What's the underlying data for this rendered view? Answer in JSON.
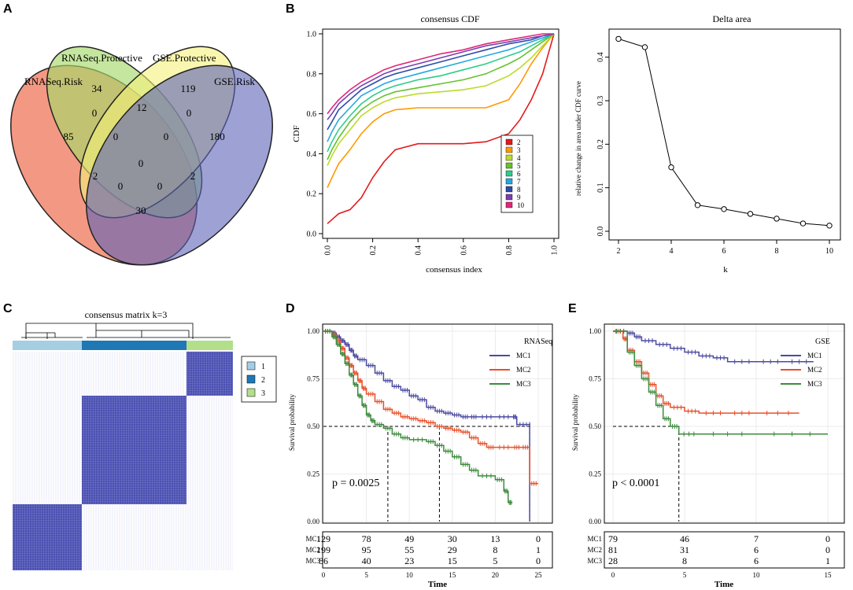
{
  "panel_labels": [
    "A",
    "B",
    "C",
    "D",
    "E"
  ],
  "chart_data": [
    {
      "panel": "A",
      "type": "venn",
      "sets": [
        "RNASeq.Risk",
        "RNASeq.Protective",
        "GSE.Protective",
        "GSE.Risk"
      ],
      "set_colors": [
        "#ee6c4d",
        "#a6d96a",
        "#f5f07a",
        "#5b62b8"
      ],
      "regions": [
        {
          "sets": "RNASeq.Risk only",
          "value": 85
        },
        {
          "sets": "RNASeq.Protective only",
          "value": 34
        },
        {
          "sets": "GSE.Protective only",
          "value": 119
        },
        {
          "sets": "GSE.Risk only",
          "value": 180
        },
        {
          "sets": "RNASeq.Risk & RNASeq.Protective",
          "value": 0
        },
        {
          "sets": "RNASeq.Protective & GSE.Protective",
          "value": 12
        },
        {
          "sets": "GSE.Protective & GSE.Risk",
          "value": 0
        },
        {
          "sets": "RNASeq.Risk & RNASeq.Protective & GSE.Protective",
          "value": 0
        },
        {
          "sets": "RNASeq.Protective & GSE.Protective & GSE.Risk",
          "value": 0
        },
        {
          "sets": "all four",
          "value": 0
        },
        {
          "sets": "RNASeq.Risk & GSE.Protective",
          "value": 2
        },
        {
          "sets": "RNASeq.Protective & GSE.Risk",
          "value": 2
        },
        {
          "sets": "RNASeq.Risk & GSE.Protective & GSE.Risk",
          "value": 0
        },
        {
          "sets": "RNASeq.Risk & RNASeq.Protective & GSE.Risk",
          "value": 0
        },
        {
          "sets": "RNASeq.Risk & GSE.Risk",
          "value": 30
        }
      ]
    },
    {
      "panel": "B-left",
      "type": "line",
      "title": "consensus CDF",
      "xlabel": "consensus index",
      "ylabel": "CDF",
      "xlim": [
        0,
        1
      ],
      "ylim": [
        0,
        1
      ],
      "xticks": [
        "0.0",
        "0.2",
        "0.4",
        "0.6",
        "0.8",
        "1.0"
      ],
      "yticks": [
        "0.0",
        "0.2",
        "0.4",
        "0.6",
        "0.8",
        "1.0"
      ],
      "x": [
        0,
        0.02,
        0.05,
        0.1,
        0.15,
        0.2,
        0.25,
        0.3,
        0.4,
        0.5,
        0.6,
        0.7,
        0.8,
        0.85,
        0.9,
        0.95,
        1.0
      ],
      "series": [
        {
          "name": "2",
          "color": "#e31a1c",
          "values": [
            0.05,
            0.07,
            0.1,
            0.12,
            0.18,
            0.28,
            0.36,
            0.42,
            0.45,
            0.45,
            0.45,
            0.46,
            0.5,
            0.57,
            0.67,
            0.8,
            1.0
          ]
        },
        {
          "name": "3",
          "color": "#ff9900",
          "values": [
            0.23,
            0.28,
            0.35,
            0.42,
            0.5,
            0.56,
            0.6,
            0.62,
            0.63,
            0.63,
            0.63,
            0.63,
            0.67,
            0.75,
            0.85,
            0.93,
            1.0
          ]
        },
        {
          "name": "4",
          "color": "#bcdb2b",
          "values": [
            0.34,
            0.39,
            0.45,
            0.52,
            0.59,
            0.63,
            0.66,
            0.68,
            0.7,
            0.71,
            0.72,
            0.74,
            0.79,
            0.83,
            0.88,
            0.94,
            1.0
          ]
        },
        {
          "name": "5",
          "color": "#66c22d",
          "values": [
            0.37,
            0.42,
            0.48,
            0.56,
            0.62,
            0.66,
            0.69,
            0.71,
            0.73,
            0.75,
            0.77,
            0.8,
            0.85,
            0.88,
            0.92,
            0.96,
            1.0
          ]
        },
        {
          "name": "6",
          "color": "#2ecc8a",
          "values": [
            0.41,
            0.46,
            0.52,
            0.59,
            0.65,
            0.69,
            0.72,
            0.74,
            0.77,
            0.79,
            0.82,
            0.85,
            0.89,
            0.91,
            0.94,
            0.97,
            1.0
          ]
        },
        {
          "name": "7",
          "color": "#27a8e0",
          "values": [
            0.46,
            0.51,
            0.57,
            0.63,
            0.69,
            0.72,
            0.75,
            0.77,
            0.8,
            0.83,
            0.86,
            0.89,
            0.92,
            0.94,
            0.96,
            0.98,
            1.0
          ]
        },
        {
          "name": "8",
          "color": "#2c4ea8",
          "values": [
            0.52,
            0.56,
            0.62,
            0.67,
            0.72,
            0.75,
            0.78,
            0.8,
            0.83,
            0.86,
            0.89,
            0.92,
            0.95,
            0.96,
            0.97,
            0.99,
            1.0
          ]
        },
        {
          "name": "9",
          "color": "#7a3fb0",
          "values": [
            0.57,
            0.6,
            0.65,
            0.7,
            0.74,
            0.77,
            0.8,
            0.82,
            0.85,
            0.88,
            0.91,
            0.94,
            0.96,
            0.97,
            0.98,
            0.99,
            1.0
          ]
        },
        {
          "name": "10",
          "color": "#e0287a",
          "values": [
            0.6,
            0.63,
            0.67,
            0.72,
            0.76,
            0.79,
            0.82,
            0.84,
            0.87,
            0.9,
            0.92,
            0.95,
            0.97,
            0.98,
            0.99,
            1.0,
            1.0
          ]
        }
      ],
      "legend": [
        "2",
        "3",
        "4",
        "5",
        "6",
        "7",
        "8",
        "9",
        "10"
      ]
    },
    {
      "panel": "B-right",
      "type": "line",
      "title": "Delta area",
      "xlabel": "k",
      "ylabel": "relative change in area under CDF curve",
      "xlim": [
        2,
        10
      ],
      "ylim": [
        0,
        0.45
      ],
      "xticks": [
        "2",
        "4",
        "6",
        "8",
        "10"
      ],
      "yticks": [
        "0.0",
        "0.1",
        "0.2",
        "0.3",
        "0.4"
      ],
      "x": [
        2,
        3,
        4,
        5,
        6,
        7,
        8,
        9,
        10
      ],
      "values": [
        0.442,
        0.423,
        0.147,
        0.06,
        0.051,
        0.04,
        0.029,
        0.018,
        0.013
      ]
    },
    {
      "panel": "C",
      "type": "heatmap",
      "title": "consensus matrix k=3",
      "legend": [
        {
          "label": "1",
          "color": "#a6cee3"
        },
        {
          "label": "2",
          "color": "#1f78b4"
        },
        {
          "label": "3",
          "color": "#b2df8a"
        }
      ],
      "cluster_order": [
        "1",
        "2",
        "3"
      ]
    },
    {
      "panel": "D",
      "type": "line",
      "subtype": "kaplan-meier",
      "legend_title": "RNASeq",
      "xlabel": "Time",
      "ylabel": "Survival probability",
      "xlim": [
        0,
        25
      ],
      "ylim": [
        0,
        1
      ],
      "xticks": [
        "0",
        "5",
        "10",
        "15",
        "20",
        "25"
      ],
      "yticks": [
        "0.00",
        "0.25",
        "0.50",
        "0.75",
        "1.00"
      ],
      "pvalue": "p = 0.0025",
      "medians": [
        7.5,
        13.5,
        24
      ],
      "series": [
        {
          "name": "MC1",
          "color": "#4b4aa0",
          "points": [
            [
              0,
              1
            ],
            [
              1,
              0.99
            ],
            [
              1.5,
              0.97
            ],
            [
              2,
              0.95
            ],
            [
              2.5,
              0.93
            ],
            [
              3,
              0.9
            ],
            [
              3.5,
              0.87
            ],
            [
              4,
              0.85
            ],
            [
              5,
              0.82
            ],
            [
              6,
              0.78
            ],
            [
              7,
              0.74
            ],
            [
              8,
              0.71
            ],
            [
              9,
              0.69
            ],
            [
              10,
              0.66
            ],
            [
              11,
              0.64
            ],
            [
              12,
              0.6
            ],
            [
              13,
              0.58
            ],
            [
              14,
              0.57
            ],
            [
              15,
              0.56
            ],
            [
              16,
              0.55
            ],
            [
              17,
              0.55
            ],
            [
              18,
              0.55
            ],
            [
              20,
              0.55
            ],
            [
              22,
              0.55
            ],
            [
              22.5,
              0.51
            ],
            [
              24,
              0.51
            ],
            [
              24,
              0
            ]
          ]
        },
        {
          "name": "MC2",
          "color": "#e8502b",
          "points": [
            [
              0,
              1
            ],
            [
              1,
              0.98
            ],
            [
              1.5,
              0.95
            ],
            [
              2,
              0.91
            ],
            [
              2.5,
              0.86
            ],
            [
              3,
              0.82
            ],
            [
              3.5,
              0.78
            ],
            [
              4,
              0.74
            ],
            [
              4.5,
              0.7
            ],
            [
              5,
              0.67
            ],
            [
              6,
              0.63
            ],
            [
              7,
              0.59
            ],
            [
              8,
              0.57
            ],
            [
              9,
              0.55
            ],
            [
              10,
              0.54
            ],
            [
              11,
              0.53
            ],
            [
              12,
              0.52
            ],
            [
              13,
              0.5
            ],
            [
              14,
              0.49
            ],
            [
              15,
              0.48
            ],
            [
              16,
              0.47
            ],
            [
              17,
              0.44
            ],
            [
              18,
              0.41
            ],
            [
              19,
              0.39
            ],
            [
              20,
              0.39
            ],
            [
              22,
              0.39
            ],
            [
              23,
              0.39
            ],
            [
              24,
              0.2
            ],
            [
              25,
              0.2
            ]
          ]
        },
        {
          "name": "MC3",
          "color": "#3d8b3d",
          "points": [
            [
              0,
              1
            ],
            [
              1,
              0.97
            ],
            [
              1.5,
              0.93
            ],
            [
              2,
              0.88
            ],
            [
              2.5,
              0.83
            ],
            [
              3,
              0.77
            ],
            [
              3.5,
              0.72
            ],
            [
              4,
              0.66
            ],
            [
              4.5,
              0.61
            ],
            [
              5,
              0.56
            ],
            [
              5.5,
              0.53
            ],
            [
              6,
              0.51
            ],
            [
              7,
              0.49
            ],
            [
              8,
              0.46
            ],
            [
              9,
              0.44
            ],
            [
              10,
              0.43
            ],
            [
              12,
              0.42
            ],
            [
              13,
              0.4
            ],
            [
              14,
              0.37
            ],
            [
              15,
              0.34
            ],
            [
              16,
              0.3
            ],
            [
              17,
              0.27
            ],
            [
              18,
              0.24
            ],
            [
              20,
              0.22
            ],
            [
              21,
              0.16
            ],
            [
              21.5,
              0.1
            ],
            [
              22,
              0.1
            ]
          ]
        }
      ],
      "risk_table": {
        "rows": [
          "MC1",
          "MC2",
          "MC3"
        ],
        "times": [
          "0",
          "5",
          "10",
          "15",
          "20",
          "25"
        ],
        "values": [
          [
            "129",
            "78",
            "49",
            "30",
            "13",
            "0"
          ],
          [
            "199",
            "95",
            "55",
            "29",
            "8",
            "1"
          ],
          [
            "86",
            "40",
            "23",
            "15",
            "5",
            "0"
          ]
        ]
      }
    },
    {
      "panel": "E",
      "type": "line",
      "subtype": "kaplan-meier",
      "legend_title": "GSE",
      "xlabel": "Time",
      "ylabel": "Survival probability",
      "xlim": [
        0,
        15
      ],
      "ylim": [
        0,
        1
      ],
      "xticks": [
        "0",
        "5",
        "10",
        "15"
      ],
      "yticks": [
        "0.00",
        "0.25",
        "0.50",
        "0.75",
        "1.00"
      ],
      "pvalue": "p < 0.0001",
      "medians": [
        4.6
      ],
      "series": [
        {
          "name": "MC1",
          "color": "#4b4aa0",
          "points": [
            [
              0,
              1
            ],
            [
              1,
              0.99
            ],
            [
              1.5,
              0.97
            ],
            [
              2,
              0.95
            ],
            [
              3,
              0.93
            ],
            [
              4,
              0.91
            ],
            [
              5,
              0.89
            ],
            [
              6,
              0.87
            ],
            [
              7,
              0.86
            ],
            [
              8,
              0.84
            ],
            [
              10,
              0.84
            ],
            [
              12,
              0.84
            ],
            [
              14,
              0.84
            ]
          ]
        },
        {
          "name": "MC2",
          "color": "#e8502b",
          "points": [
            [
              0,
              1
            ],
            [
              0.7,
              0.96
            ],
            [
              1,
              0.9
            ],
            [
              1.5,
              0.84
            ],
            [
              2,
              0.78
            ],
            [
              2.5,
              0.72
            ],
            [
              3,
              0.66
            ],
            [
              3.5,
              0.62
            ],
            [
              4,
              0.6
            ],
            [
              5,
              0.58
            ],
            [
              6,
              0.57
            ],
            [
              8,
              0.57
            ],
            [
              10,
              0.57
            ],
            [
              13,
              0.57
            ]
          ]
        },
        {
          "name": "MC3",
          "color": "#3d8b3d",
          "points": [
            [
              0,
              1
            ],
            [
              1,
              0.89
            ],
            [
              1.5,
              0.82
            ],
            [
              2,
              0.75
            ],
            [
              2.5,
              0.68
            ],
            [
              3,
              0.61
            ],
            [
              3.5,
              0.54
            ],
            [
              4,
              0.5
            ],
            [
              4.6,
              0.46
            ],
            [
              6,
              0.46
            ],
            [
              10,
              0.46
            ],
            [
              15,
              0.46
            ]
          ]
        }
      ],
      "risk_table": {
        "rows": [
          "MC1",
          "MC2",
          "MC3"
        ],
        "times": [
          "0",
          "5",
          "10",
          "15"
        ],
        "values": [
          [
            "79",
            "46",
            "7",
            "0"
          ],
          [
            "81",
            "31",
            "6",
            "0"
          ],
          [
            "28",
            "8",
            "6",
            "1"
          ]
        ]
      }
    }
  ]
}
